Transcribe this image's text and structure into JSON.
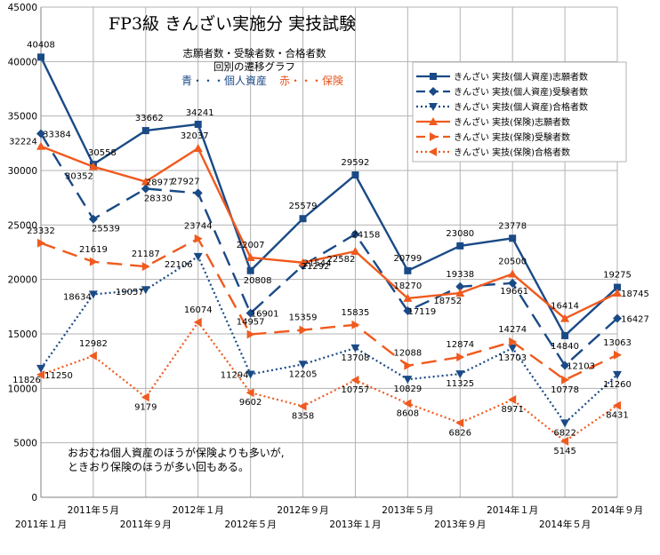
{
  "chart_data": {
    "type": "line",
    "title": "FP3級 きんざい実施分 実技試験",
    "subtitle_lines": [
      "志願者数・受験者数・合格者数",
      "回別の遷移グラフ"
    ],
    "key_blue": "青・・・個人資産",
    "key_red": "赤・・・保険",
    "note_lines": [
      "おおむね個人資産のほうが保険よりも多いが,",
      "ときおり保険のほうが多い回もある。"
    ],
    "categories": [
      "2011年１月",
      "2011年５月",
      "2011年９月",
      "2012年１月",
      "2012年５月",
      "2012年９月",
      "2013年１月",
      "2013年５月",
      "2013年９月",
      "2014年１月",
      "2014年５月",
      "2014年９月"
    ],
    "xlabel": "",
    "ylabel": "",
    "ylim": [
      0,
      45000
    ],
    "yticks": [
      0,
      5000,
      10000,
      15000,
      20000,
      25000,
      30000,
      35000,
      40000,
      45000
    ],
    "ytick_labels": [
      "0",
      "5000",
      "10000",
      "15000",
      "20000",
      "25000",
      "30000",
      "35000",
      "40000",
      "45000"
    ],
    "grid": true,
    "legend_position": "top-right",
    "colors": {
      "blue": "#1a4a86",
      "red": "#f05a1e"
    },
    "series": [
      {
        "name": "きんざい 実技(個人資産)志願者数",
        "color": "blue",
        "dash": "solid",
        "marker": "square",
        "values": [
          40408,
          30558,
          33662,
          34241,
          20808,
          25579,
          29592,
          20799,
          23080,
          23778,
          14840,
          19275
        ],
        "labels": [
          "40408",
          "30558",
          "33662",
          "34241",
          "20808",
          "25579",
          "29592",
          "20799",
          "23080",
          "23778",
          "14840",
          "19275"
        ]
      },
      {
        "name": "きんざい 実技(個人資産)受験者数",
        "color": "blue",
        "dash": "longdash",
        "marker": "diamond",
        "values": [
          33384,
          25539,
          28330,
          27927,
          16901,
          21292,
          24158,
          17119,
          19338,
          19661,
          12103,
          16427
        ],
        "labels": [
          "33384",
          "25539",
          "28330",
          "27927",
          "16901",
          "21292",
          "24158",
          "17119",
          "19338",
          "19661",
          "12103",
          "16427"
        ]
      },
      {
        "name": "きんざい 実技(個人資産)合格者数",
        "color": "blue",
        "dash": "dotted",
        "marker": "tri-down",
        "values": [
          11826,
          18634,
          19057,
          22106,
          11294,
          12205,
          13708,
          10829,
          11325,
          13703,
          6822,
          11260
        ],
        "labels": [
          "11826",
          "18634",
          "19057",
          "22106",
          "11294",
          "12205",
          "13708",
          "10829",
          "11325",
          "13703",
          "6822",
          "11260"
        ]
      },
      {
        "name": "きんざい 実技(保険)志願者数",
        "color": "red",
        "dash": "solid",
        "marker": "tri-up",
        "values": [
          32224,
          30352,
          28977,
          32037,
          22007,
          21544,
          22582,
          18270,
          18752,
          20500,
          16414,
          18745
        ],
        "labels": [
          "32224",
          "30352",
          "28977",
          "32037",
          "22007",
          "21544",
          "22582",
          "18270",
          "18752",
          "20500",
          "16414",
          "18745"
        ]
      },
      {
        "name": "きんざい 実技(保険)受験者数",
        "color": "red",
        "dash": "longdash",
        "marker": "tri-right",
        "values": [
          23332,
          21619,
          21187,
          23744,
          14957,
          15359,
          15835,
          12088,
          12874,
          14274,
          10778,
          13063
        ],
        "labels": [
          "23332",
          "21619",
          "21187",
          "23744",
          "14957",
          "15359",
          "15835",
          "12088",
          "12874",
          "14274",
          "10778",
          "13063"
        ]
      },
      {
        "name": "きんざい 実技(保険)合格者数",
        "color": "red",
        "dash": "dotted",
        "marker": "tri-left",
        "values": [
          11250,
          12982,
          9179,
          16074,
          9602,
          8358,
          10757,
          8608,
          6826,
          8971,
          5145,
          8431
        ],
        "labels": [
          "11250",
          "12982",
          "9179",
          "16074",
          "9602",
          "8358",
          "10757",
          "8608",
          "6826",
          "8971",
          "5145",
          "8431"
        ]
      }
    ]
  }
}
